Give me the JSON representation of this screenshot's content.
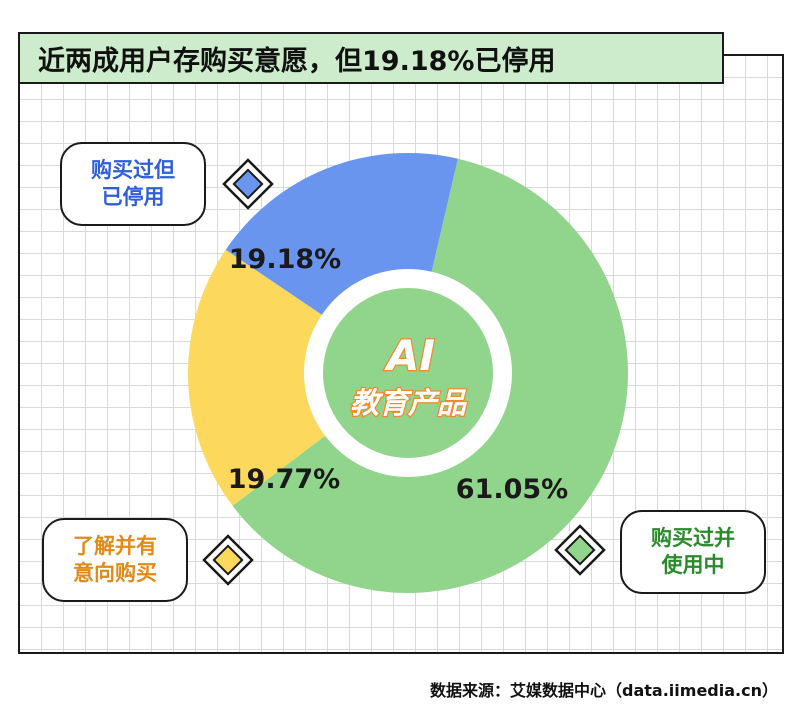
{
  "title": "近两成用户存购买意愿，但19.18%已停用",
  "center_label": {
    "line1": "AI",
    "line2": "教育产品"
  },
  "source": "数据来源：艾媒数据中心（data.iimedia.cn）",
  "colors": {
    "green": "#91d58c",
    "blue": "#6a95ee",
    "yellow": "#fcd95c",
    "title_bg": "#cdeccb"
  },
  "chart_data": {
    "type": "pie",
    "donut": true,
    "title": "近两成用户存购买意愿，但19.18%已停用",
    "slices": [
      {
        "label": "购买过并使用中",
        "value": 61.05,
        "display": "61.05%",
        "color": "#91d58c"
      },
      {
        "label": "了解并有意向购买",
        "value": 19.77,
        "display": "19.77%",
        "color": "#fcd95c"
      },
      {
        "label": "购买过但已停用",
        "value": 19.18,
        "display": "19.18%",
        "color": "#6a95ee"
      }
    ]
  },
  "callouts": [
    {
      "text": "购买过但\n已停用",
      "color": "#2f5fd8"
    },
    {
      "text": "了解并有\n意向购买",
      "color": "#e08a18"
    },
    {
      "text": "购买过并\n使用中",
      "color": "#2b8a2b"
    }
  ]
}
